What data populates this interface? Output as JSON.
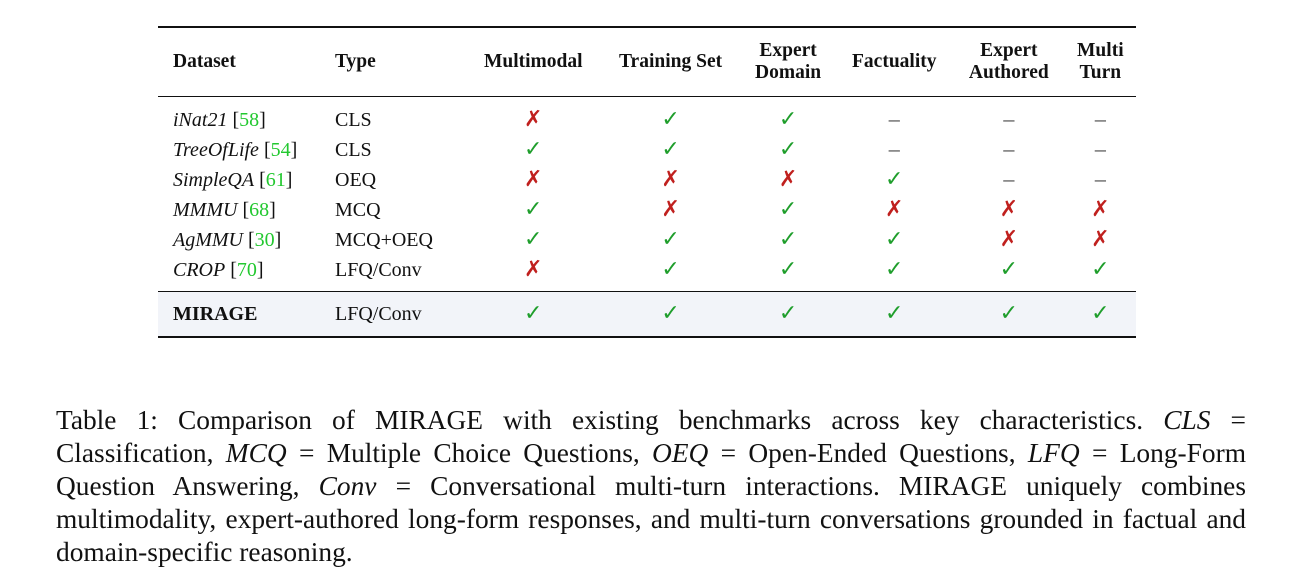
{
  "table": {
    "headers": [
      "Dataset",
      "Type",
      "Multimodal",
      "Training Set",
      "Expert Domain",
      "Factuality",
      "Expert Authored",
      "Multi Turn"
    ],
    "header_lines": [
      [
        "Dataset"
      ],
      [
        "Type"
      ],
      [
        "Multimodal"
      ],
      [
        "Training Set"
      ],
      [
        "Expert",
        "Domain"
      ],
      [
        "Factuality"
      ],
      [
        "Expert",
        "Authored"
      ],
      [
        "Multi",
        "Turn"
      ]
    ],
    "rows": [
      {
        "dataset": "iNat21",
        "cite": "58",
        "type": "CLS",
        "values": [
          "cross",
          "check",
          "check",
          "dash",
          "dash",
          "dash"
        ]
      },
      {
        "dataset": "TreeOfLife",
        "cite": "54",
        "type": "CLS",
        "values": [
          "check",
          "check",
          "check",
          "dash",
          "dash",
          "dash"
        ]
      },
      {
        "dataset": "SimpleQA",
        "cite": "61",
        "type": "OEQ",
        "values": [
          "cross",
          "cross",
          "cross",
          "check",
          "dash",
          "dash"
        ]
      },
      {
        "dataset": "MMMU",
        "cite": "68",
        "type": "MCQ",
        "values": [
          "check",
          "cross",
          "check",
          "cross",
          "cross",
          "cross"
        ]
      },
      {
        "dataset": "AgMMU",
        "cite": "30",
        "type": "MCQ+OEQ",
        "values": [
          "check",
          "check",
          "check",
          "check",
          "cross",
          "cross"
        ]
      },
      {
        "dataset": "CROP",
        "cite": "70",
        "type": "LFQ/Conv",
        "values": [
          "cross",
          "check",
          "check",
          "check",
          "check",
          "check"
        ]
      }
    ],
    "highlight_row": {
      "dataset": "MIRAGE",
      "type": "LFQ/Conv",
      "values": [
        "check",
        "check",
        "check",
        "check",
        "check",
        "check"
      ]
    },
    "symbols": {
      "check": "✓",
      "cross": "✗",
      "dash": "–"
    },
    "colors": {
      "check": "#1f9e2c",
      "cross": "#c0201e",
      "cite": "#22c82f",
      "highlight_bg": "#f2f4f9"
    }
  },
  "caption": {
    "segments": [
      {
        "text": "Table 1: Comparison of MIRAGE with existing benchmarks across key characteristics. ",
        "italic": false
      },
      {
        "text": "CLS",
        "italic": true
      },
      {
        "text": " = Classification, ",
        "italic": false
      },
      {
        "text": "MCQ",
        "italic": true
      },
      {
        "text": " = Multiple Choice Questions, ",
        "italic": false
      },
      {
        "text": "OEQ",
        "italic": true
      },
      {
        "text": " = Open-Ended Questions, ",
        "italic": false
      },
      {
        "text": "LFQ",
        "italic": true
      },
      {
        "text": " = Long-Form Question Answering, ",
        "italic": false
      },
      {
        "text": "Conv",
        "italic": true
      },
      {
        "text": " = Conversational multi-turn interactions. MIRAGE uniquely combines multimodality, expert-authored long-form responses, and multi-turn conversations grounded in factual and domain-specific reasoning.",
        "italic": false
      }
    ]
  }
}
